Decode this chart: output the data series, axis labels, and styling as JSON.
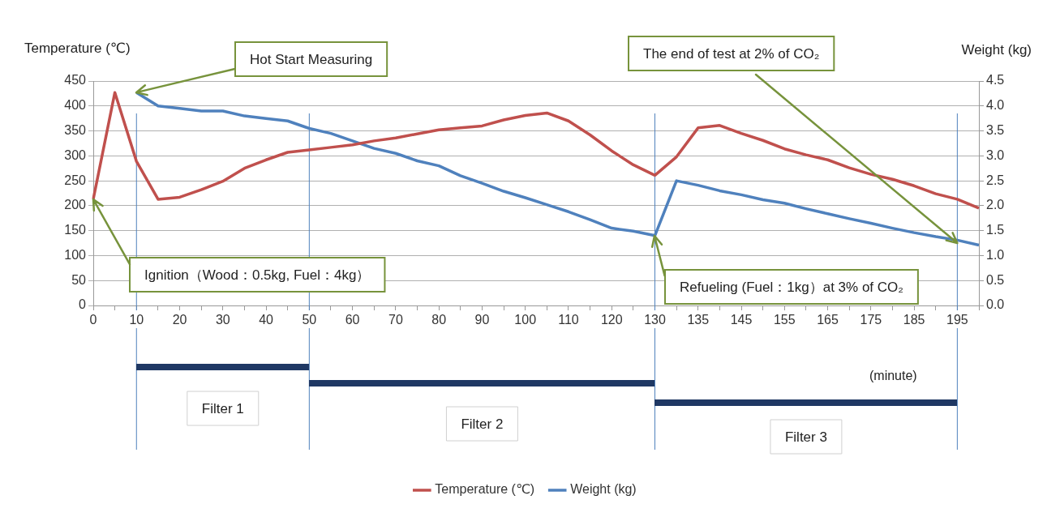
{
  "chart_data": {
    "type": "line",
    "ylabel": "Temperature (℃)",
    "y2label": "Weight (kg)",
    "xlabel": "(minute)",
    "categories": [
      "0",
      null,
      "10",
      null,
      "20",
      null,
      "30",
      null,
      "40",
      null,
      "50",
      null,
      "60",
      null,
      "70",
      null,
      "80",
      null,
      "90",
      null,
      "100",
      null,
      "110",
      null,
      "120",
      null,
      "130",
      null,
      "135",
      null,
      "145",
      null,
      "155",
      null,
      "165",
      null,
      "175",
      null,
      "185",
      null,
      "195",
      null
    ],
    "series": [
      {
        "name": "Temperature (℃)",
        "color": "#c0504d",
        "values": [
          213,
          427,
          289,
          213,
          217,
          232,
          249,
          275,
          292,
          307,
          312,
          317,
          322,
          330,
          336,
          344,
          352,
          356,
          360,
          372,
          381,
          386,
          370,
          342,
          310,
          282,
          261,
          298,
          356,
          361,
          345,
          331,
          314,
          302,
          292,
          276,
          263,
          253,
          240,
          224,
          213,
          195
        ]
      },
      {
        "name": "Weight (kg)",
        "color": "#4f81bd",
        "axis": "y2",
        "values": [
          null,
          null,
          4.27,
          4.0,
          3.95,
          3.9,
          3.9,
          3.8,
          3.75,
          3.7,
          3.55,
          3.45,
          3.3,
          3.15,
          3.05,
          2.9,
          2.8,
          2.6,
          2.45,
          2.29,
          2.16,
          2.02,
          1.88,
          1.72,
          1.55,
          1.49,
          1.4,
          2.5,
          2.41,
          2.3,
          2.22,
          2.12,
          2.05,
          1.94,
          1.84,
          1.74,
          1.65,
          1.55,
          1.46,
          1.38,
          1.31,
          1.21
        ]
      }
    ],
    "ylim": [
      0,
      450
    ],
    "yticks": [
      0,
      50,
      100,
      150,
      200,
      250,
      300,
      350,
      400,
      450
    ],
    "y2lim": [
      0,
      4.5
    ],
    "y2ticks": [
      {
        "value": 0,
        "label": "0.0"
      },
      {
        "value": 0.5,
        "label": "0.5"
      },
      {
        "value": 1,
        "label": "1.0"
      },
      {
        "value": 1.5,
        "label": "1.5"
      },
      {
        "value": 2,
        "label": "2.0"
      },
      {
        "value": 2.5,
        "label": "2.5"
      },
      {
        "value": 3,
        "label": "3.0"
      },
      {
        "value": 3.5,
        "label": "3.5"
      },
      {
        "value": 4,
        "label": "4.0"
      },
      {
        "value": 4.5,
        "label": "4.5"
      }
    ],
    "grid": "y",
    "legend": "bottom",
    "marker": "none",
    "line_style": "solid",
    "ref_lines": [
      {
        "axis": "x",
        "value": "10",
        "color": "#4f81bd"
      },
      {
        "axis": "x",
        "value": "50",
        "color": "#4f81bd"
      },
      {
        "axis": "x",
        "value": "130",
        "color": "#4f81bd"
      },
      {
        "axis": "x",
        "value": "195",
        "color": "#4f81bd"
      }
    ],
    "annotations": [
      "Filter 1",
      "Filter 2",
      "Filter 3",
      {
        "text": "Hot Start Measuring",
        "x": "10",
        "y": 427
      },
      {
        "text": "Ignition（Wood：0.5kg, Fuel：4kg）",
        "x": "0",
        "y": 213
      },
      {
        "text": "Refueling (Fuel：1kg）at 3% of CO₂",
        "x": "130",
        "y": 140
      },
      {
        "text": "The end of test at 2% of CO₂",
        "x": "195",
        "y": 125
      }
    ]
  }
}
